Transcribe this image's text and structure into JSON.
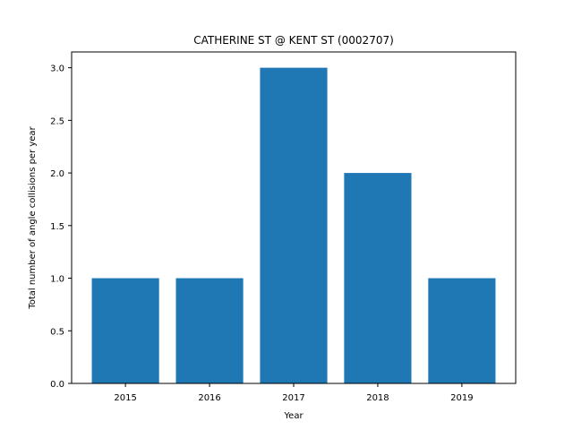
{
  "chart_data": {
    "type": "bar",
    "title": "CATHERINE ST @ KENT ST (0002707)",
    "xlabel": "Year",
    "ylabel": "Total number of angle collisions per year",
    "categories": [
      "2015",
      "2016",
      "2017",
      "2018",
      "2019"
    ],
    "values": [
      1,
      1,
      3,
      2,
      1
    ],
    "ylim": [
      0,
      3.15
    ],
    "yticks": [
      "0.0",
      "0.5",
      "1.0",
      "1.5",
      "2.0",
      "2.5",
      "3.0"
    ],
    "bar_color": "#1f77b4",
    "grid": false,
    "legend": "none"
  }
}
